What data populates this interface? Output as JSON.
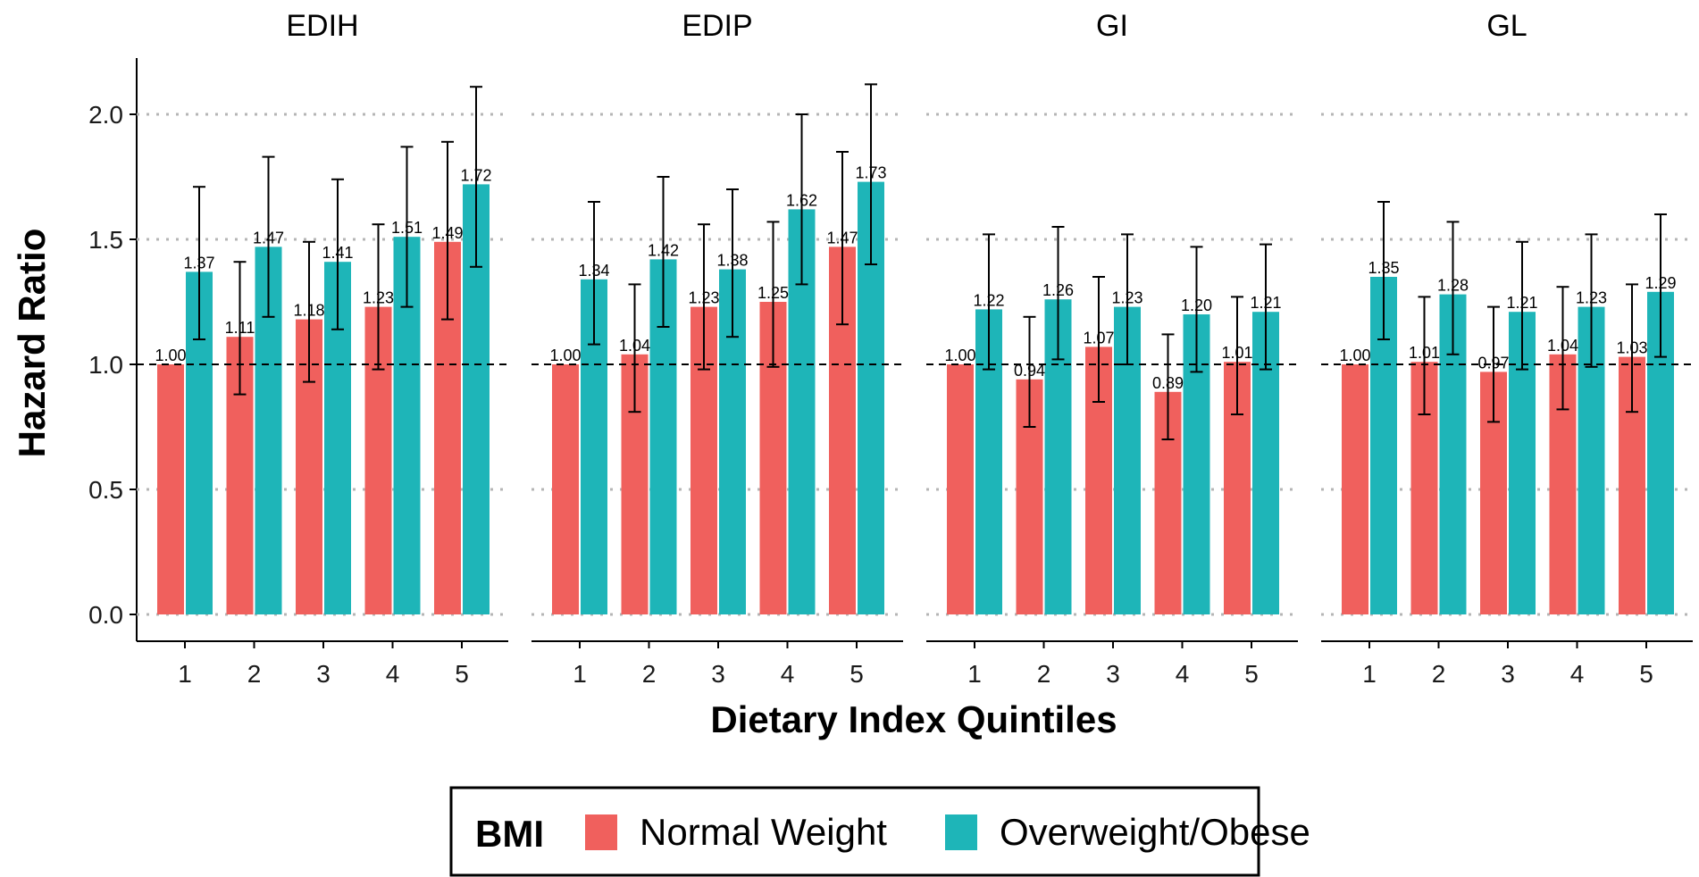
{
  "chart_data": {
    "type": "bar",
    "title": "",
    "xlabel": "Dietary Index Quintiles",
    "ylabel": "Hazard Ratio",
    "ylim": [
      0,
      2.2
    ],
    "yticks": [
      "0.0",
      "0.5",
      "1.0",
      "1.5",
      "2.0"
    ],
    "ytick_values": [
      0,
      0.5,
      1.0,
      1.5,
      2.0
    ],
    "reference_line": 1.0,
    "grid": "horizontal dotted",
    "categories": [
      "1",
      "2",
      "3",
      "4",
      "5"
    ],
    "legend": {
      "title": "BMI",
      "placement": "bottom",
      "entries": [
        "Normal Weight",
        "Overweight/Obese"
      ]
    },
    "colors": {
      "Normal Weight": "#F0605D",
      "Overweight/Obese": "#1EB5B8"
    },
    "facets": [
      {
        "name": "EDIH",
        "series": [
          {
            "name": "Normal Weight",
            "values": [
              1.0,
              1.11,
              1.18,
              1.23,
              1.49
            ],
            "labels": [
              "1.00",
              "1.11",
              "1.18",
              "1.23",
              "1.49"
            ],
            "ci_low": [
              1.0,
              0.88,
              0.93,
              0.98,
              1.18
            ],
            "ci_high": [
              1.0,
              1.41,
              1.49,
              1.56,
              1.89
            ]
          },
          {
            "name": "Overweight/Obese",
            "values": [
              1.37,
              1.47,
              1.41,
              1.51,
              1.72
            ],
            "labels": [
              "1.37",
              "1.47",
              "1.41",
              "1.51",
              "1.72"
            ],
            "ci_low": [
              1.1,
              1.19,
              1.14,
              1.23,
              1.39
            ],
            "ci_high": [
              1.71,
              1.83,
              1.74,
              1.87,
              2.11
            ]
          }
        ]
      },
      {
        "name": "EDIP",
        "series": [
          {
            "name": "Normal Weight",
            "values": [
              1.0,
              1.04,
              1.23,
              1.25,
              1.47
            ],
            "labels": [
              "1.00",
              "1.04",
              "1.23",
              "1.25",
              "1.47"
            ],
            "ci_low": [
              1.0,
              0.81,
              0.98,
              0.99,
              1.16
            ],
            "ci_high": [
              1.0,
              1.32,
              1.56,
              1.57,
              1.85
            ]
          },
          {
            "name": "Overweight/Obese",
            "values": [
              1.34,
              1.42,
              1.38,
              1.62,
              1.73
            ],
            "labels": [
              "1.34",
              "1.42",
              "1.38",
              "1.62",
              "1.73"
            ],
            "ci_low": [
              1.08,
              1.15,
              1.11,
              1.32,
              1.4
            ],
            "ci_high": [
              1.65,
              1.75,
              1.7,
              2.0,
              2.12
            ]
          }
        ]
      },
      {
        "name": "GI",
        "series": [
          {
            "name": "Normal Weight",
            "values": [
              1.0,
              0.94,
              1.07,
              0.89,
              1.01
            ],
            "labels": [
              "1.00",
              "0.94",
              "1.07",
              "0.89",
              "1.01"
            ],
            "ci_low": [
              1.0,
              0.75,
              0.85,
              0.7,
              0.8
            ],
            "ci_high": [
              1.0,
              1.19,
              1.35,
              1.12,
              1.27
            ]
          },
          {
            "name": "Overweight/Obese",
            "values": [
              1.22,
              1.26,
              1.23,
              1.2,
              1.21
            ],
            "labels": [
              "1.22",
              "1.26",
              "1.23",
              "1.20",
              "1.21"
            ],
            "ci_low": [
              0.98,
              1.02,
              1.0,
              0.97,
              0.98
            ],
            "ci_high": [
              1.52,
              1.55,
              1.52,
              1.47,
              1.48
            ]
          }
        ]
      },
      {
        "name": "GL",
        "series": [
          {
            "name": "Normal Weight",
            "values": [
              1.0,
              1.01,
              0.97,
              1.04,
              1.03
            ],
            "labels": [
              "1.00",
              "1.01",
              "0.97",
              "1.04",
              "1.03"
            ],
            "ci_low": [
              1.0,
              0.8,
              0.77,
              0.82,
              0.81
            ],
            "ci_high": [
              1.0,
              1.27,
              1.23,
              1.31,
              1.32
            ]
          },
          {
            "name": "Overweight/Obese",
            "values": [
              1.35,
              1.28,
              1.21,
              1.23,
              1.29
            ],
            "labels": [
              "1.35",
              "1.28",
              "1.21",
              "1.23",
              "1.29"
            ],
            "ci_low": [
              1.1,
              1.04,
              0.98,
              0.99,
              1.03
            ],
            "ci_high": [
              1.65,
              1.57,
              1.49,
              1.52,
              1.6
            ]
          }
        ]
      }
    ]
  }
}
